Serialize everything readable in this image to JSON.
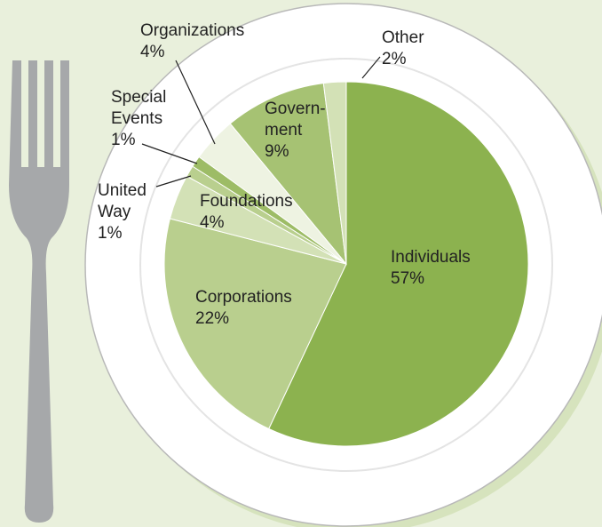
{
  "chart_data": {
    "type": "pie",
    "categories": [
      "Individuals",
      "Corporations",
      "Foundations",
      "United\nWay",
      "Special\nEvents",
      "Organizations",
      "Govern-\nment",
      "Other"
    ],
    "values": [
      57,
      22,
      4,
      1,
      1,
      4,
      9,
      2
    ],
    "value_labels": [
      "57%",
      "22%",
      "4%",
      "1%",
      "1%",
      "4%",
      "9%",
      "2%"
    ],
    "colors": [
      "#8cb24f",
      "#b9cf8e",
      "#d3e1b6",
      "#b9cf8e",
      "#9dbc66",
      "#eef3e2",
      "#a6c273",
      "#d3e1b6"
    ]
  }
}
